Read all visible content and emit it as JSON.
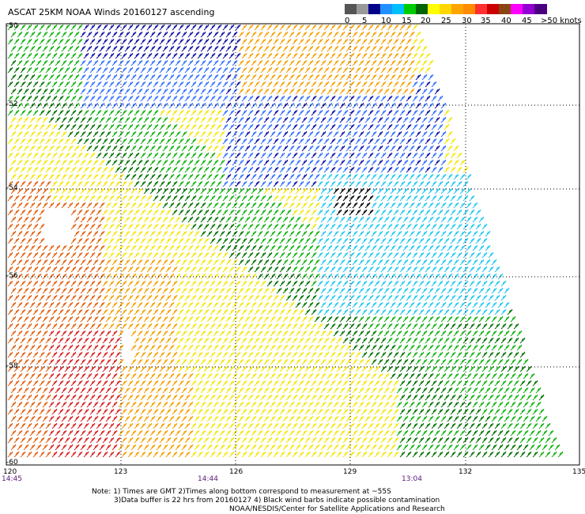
{
  "title": "ASCAT 25KM NOAA Winds 20160127 ascending",
  "legend": {
    "colors": [
      "#555555",
      "#999999",
      "#00008b",
      "#1e90ff",
      "#00bfff",
      "#00cd00",
      "#006400",
      "#ffff00",
      "#ffd700",
      "#ffa500",
      "#ff8c00",
      "#ff3030",
      "#cd0000",
      "#8b4513",
      "#ff00ff",
      "#9400d3",
      "#4b0082"
    ],
    "labels": [
      "0",
      "5",
      "10",
      "15",
      "20",
      "25",
      "30",
      "35",
      "40",
      "45",
      ">50 knots"
    ]
  },
  "axes": {
    "lat_labels": [
      "-50",
      "-52",
      "-54",
      "-56",
      "-58",
      "-60"
    ],
    "lon_labels": [
      "120",
      "123",
      "126",
      "129",
      "132",
      "135"
    ]
  },
  "time_labels": [
    "14:45",
    "14:44",
    "13:04"
  ],
  "notes": [
    "Note: 1) Times are GMT 2)Times along bottom correspond to measurement at ~55S",
    "3)Data buffer is 22 hrs from 20160127 4) Black wind barbs indicate possible contamination",
    "NOAA/NESDIS/Center for Satellite Applications and Research"
  ],
  "colors": {
    "yellow": "#f5e600",
    "orange": "#f5a000",
    "dark_orange": "#e06010",
    "red": "#d82020",
    "green": "#10b010",
    "dark_green": "#007000",
    "light_blue": "#20c8f0",
    "blue": "#3070ff",
    "navy": "#1010a0",
    "black": "#000000"
  }
}
